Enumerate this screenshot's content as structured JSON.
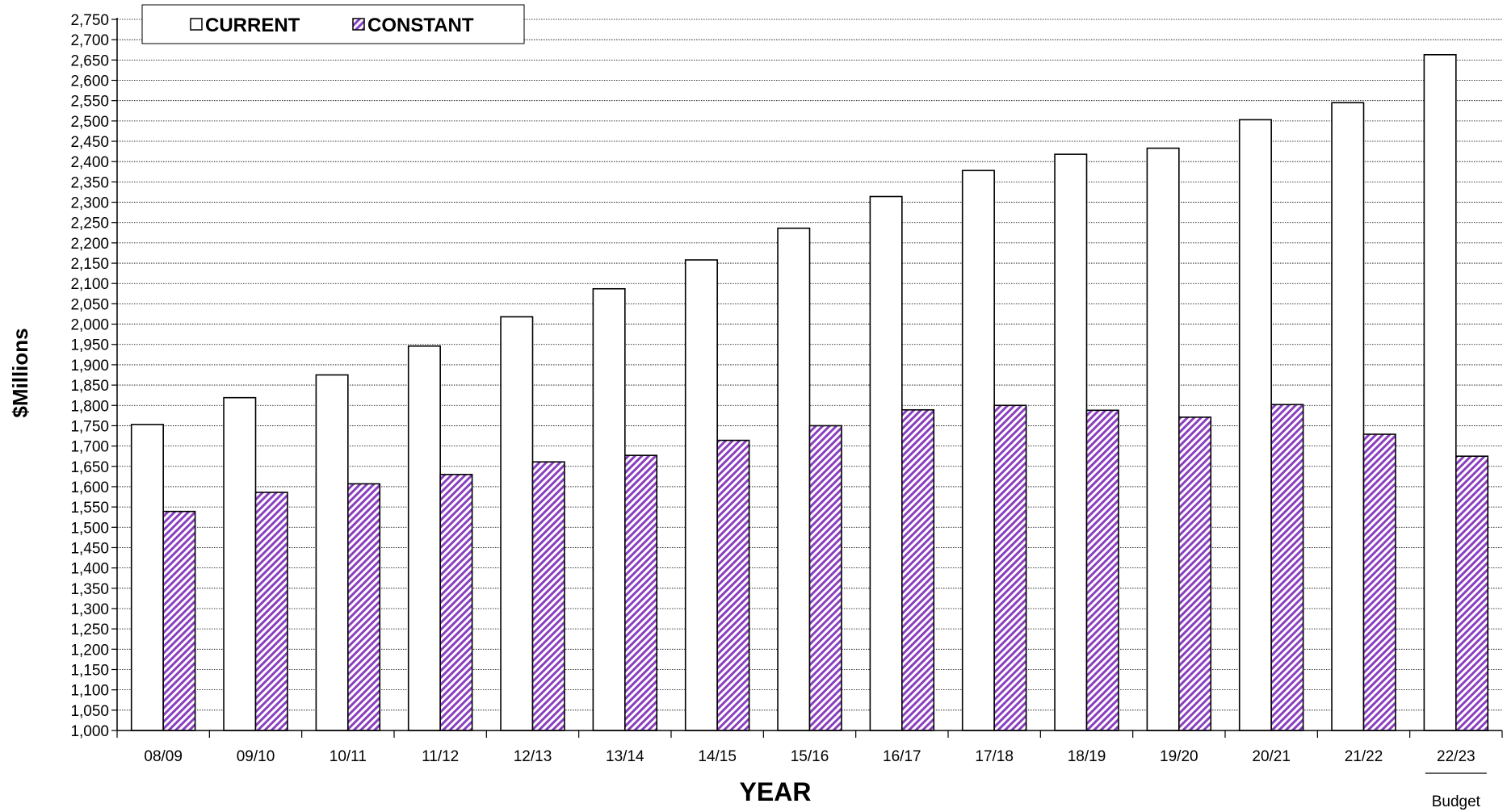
{
  "chart_data": {
    "type": "bar",
    "title": "",
    "xlabel": "YEAR",
    "ylabel": "$Millions",
    "ylim": [
      1000,
      2750
    ],
    "ytick_step": 50,
    "grid": "horizontal dotted",
    "legend_position": "top-left",
    "categories": [
      "08/09",
      "09/10",
      "10/11",
      "11/12",
      "12/13",
      "13/14",
      "14/15",
      "15/16",
      "16/17",
      "17/18",
      "18/19",
      "19/20",
      "20/21",
      "21/22",
      "22/23"
    ],
    "category_notes": {
      "22/23": "Budget"
    },
    "series": [
      {
        "name": "CURRENT",
        "fill": "#ffffff",
        "stroke": "#000000",
        "values": [
          1753,
          1819,
          1875,
          1946,
          2018,
          2087,
          2158,
          2236,
          2314,
          2378,
          2418,
          2433,
          2503,
          2545,
          2663
        ]
      },
      {
        "name": "CONSTANT",
        "fill": "#9b59c9",
        "pattern": "diagonal-hatch",
        "stroke": "#000000",
        "values": [
          1539,
          1586,
          1607,
          1630,
          1661,
          1677,
          1714,
          1750,
          1789,
          1800,
          1788,
          1771,
          1802,
          1729,
          1675
        ]
      }
    ]
  }
}
